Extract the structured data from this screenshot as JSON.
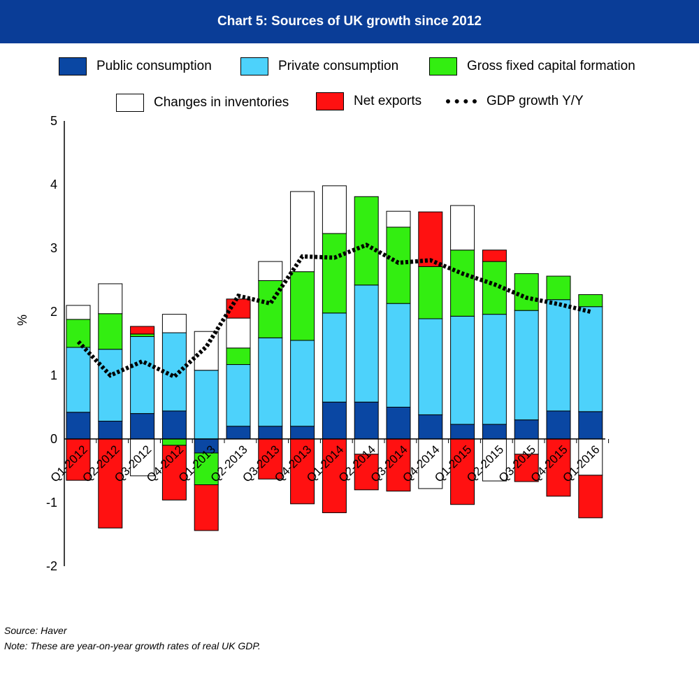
{
  "header": {
    "title": "Chart 5: Sources of UK growth since 2012"
  },
  "legend": {
    "items": [
      {
        "label": "Public consumption",
        "color": "#0a47a3",
        "kind": "swatch"
      },
      {
        "label": "Private consumption",
        "color": "#4dd2fb",
        "kind": "swatch"
      },
      {
        "label": "Gross fixed capital formation",
        "color": "#33ee11",
        "kind": "swatch"
      },
      {
        "label": "Changes in inventories",
        "color": "#ffffff",
        "kind": "swatch"
      },
      {
        "label": "Net exports",
        "color": "#ff1111",
        "kind": "swatch"
      },
      {
        "label": "GDP growth Y/Y",
        "color": "#000000",
        "kind": "dotted-line"
      }
    ]
  },
  "chart_data": {
    "type": "bar",
    "stacked": true,
    "title": "Chart 5: Sources of UK growth since 2012",
    "ylabel": "%",
    "ylim": [
      -2,
      5
    ],
    "yticks": [
      5,
      4,
      3,
      2,
      1,
      0,
      -1,
      -2
    ],
    "categories": [
      "Q1-2012",
      "Q2-2012",
      "Q3-2012",
      "Q4-2012",
      "Q1-2013",
      "Q2-2013",
      "Q3-2013",
      "Q4-2013",
      "Q1-2014",
      "Q2-2014",
      "Q3-2014",
      "Q4-2014",
      "Q1-2015",
      "Q2-2015",
      "Q3-2015",
      "Q4-2015",
      "Q1-2016"
    ],
    "series": [
      {
        "name": "Public consumption",
        "color": "#0a47a3",
        "values": [
          0.42,
          0.28,
          0.4,
          0.44,
          -0.22,
          0.2,
          0.2,
          0.2,
          0.58,
          0.58,
          0.5,
          0.38,
          0.23,
          0.23,
          0.3,
          0.44,
          0.43
        ]
      },
      {
        "name": "Private consumption",
        "color": "#4dd2fb",
        "values": [
          1.02,
          1.13,
          1.21,
          1.23,
          1.08,
          0.97,
          1.39,
          1.35,
          1.4,
          1.84,
          1.63,
          1.51,
          1.7,
          1.73,
          1.72,
          1.75,
          1.65
        ]
      },
      {
        "name": "Gross fixed capital formation",
        "color": "#33ee11",
        "values": [
          0.44,
          0.56,
          0.04,
          -0.1,
          -0.5,
          0.26,
          0.9,
          1.08,
          1.25,
          1.39,
          1.2,
          0.82,
          1.04,
          0.83,
          0.58,
          0.37,
          0.19
        ]
      },
      {
        "name": "Changes in inventories",
        "color": "#ffffff",
        "values": [
          0.22,
          0.47,
          -0.58,
          0.29,
          0.61,
          0.47,
          0.3,
          1.26,
          0.75,
          -0.24,
          0.25,
          -0.78,
          0.7,
          -0.66,
          -0.24,
          0.0,
          -0.57
        ]
      },
      {
        "name": "Net exports",
        "color": "#ff1111",
        "values": [
          -0.65,
          -1.4,
          0.12,
          -0.86,
          -0.72,
          0.3,
          -0.63,
          -1.02,
          -1.16,
          -0.56,
          -0.82,
          0.86,
          -1.03,
          0.18,
          -0.43,
          -0.9,
          -0.67
        ]
      }
    ],
    "line": {
      "name": "GDP growth Y/Y",
      "values": [
        1.53,
        1.0,
        1.22,
        0.98,
        1.45,
        2.25,
        2.13,
        2.87,
        2.85,
        3.05,
        2.77,
        2.81,
        2.6,
        2.43,
        2.22,
        2.12,
        2.0
      ]
    },
    "grid": false,
    "legend_position": "top"
  },
  "footer": {
    "source": "Source: Haver",
    "note": "Note: These are year-on-year growth rates of real UK GDP."
  }
}
